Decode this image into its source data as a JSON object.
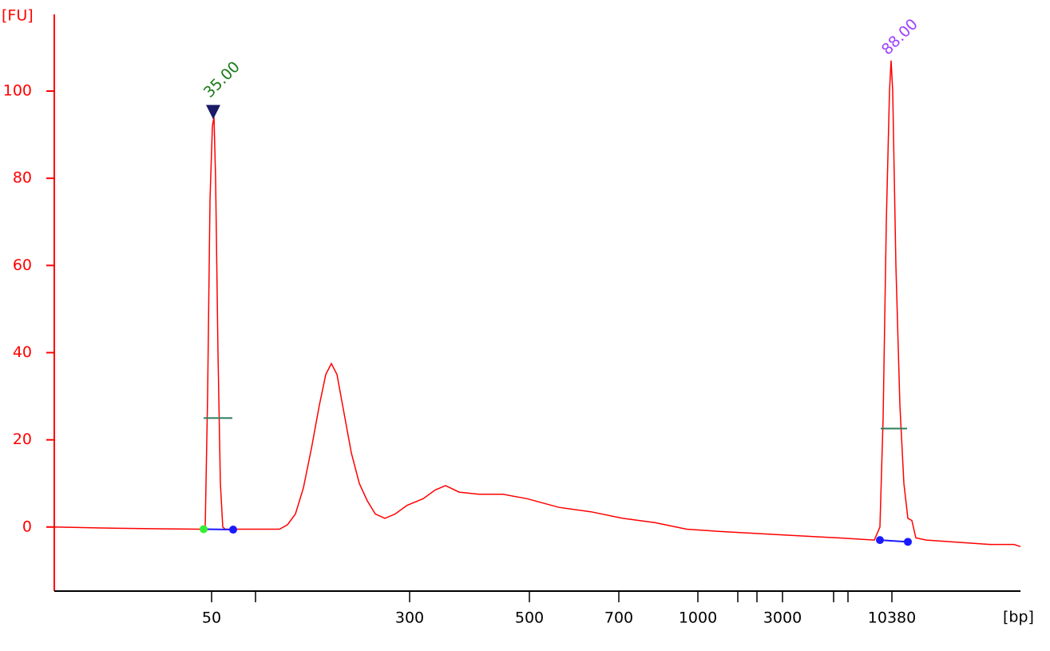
{
  "chart_data": {
    "type": "line",
    "y_label": "[FU]",
    "x_label": "[bp]",
    "color": "#ff0000",
    "axis_color": "#ff0000",
    "xlim": [
      0,
      1210
    ],
    "ylim": [
      -14.7,
      117.6
    ],
    "yticks": [
      0,
      20,
      40,
      60,
      80,
      100
    ],
    "xticks": [
      {
        "value": 197,
        "label": "50"
      },
      {
        "value": 445,
        "label": "300"
      },
      {
        "value": 595,
        "label": "500"
      },
      {
        "value": 707,
        "label": "700"
      },
      {
        "value": 806,
        "label": "1000"
      },
      {
        "value": 912,
        "label": "3000"
      },
      {
        "value": 1049,
        "label": "10380"
      }
    ],
    "minor_xticks": [
      252,
      856,
      880,
      976,
      994
    ],
    "x": [
      0,
      82,
      132,
      182,
      189,
      192,
      195,
      198,
      200,
      202,
      205,
      208,
      211,
      214,
      222,
      282,
      292,
      302,
      312,
      322,
      332,
      340,
      347,
      354,
      362,
      372,
      382,
      392,
      402,
      414,
      427,
      442,
      462,
      477,
      490,
      507,
      532,
      562,
      592,
      632,
      672,
      712,
      752,
      792,
      832,
      882,
      932,
      982,
      1027,
      1034,
      1038,
      1042,
      1046,
      1048,
      1050,
      1054,
      1059,
      1064,
      1069,
      1074,
      1079,
      1092,
      1132,
      1172,
      1202,
      1210
    ],
    "values": [
      0,
      -0.3,
      -0.4,
      -0.5,
      0,
      30,
      75,
      92,
      94,
      80,
      40,
      10,
      0,
      -0.5,
      -0.5,
      -0.5,
      0.5,
      3,
      9,
      18,
      28,
      35,
      37.5,
      35,
      27,
      17,
      10,
      6,
      3,
      2,
      3,
      5,
      6.5,
      8.5,
      9.5,
      8,
      7.5,
      7.5,
      6.5,
      4.5,
      3.5,
      2,
      1,
      -0.5,
      -1,
      -1.5,
      -2,
      -2.5,
      -3,
      0,
      25,
      70,
      100,
      107,
      100,
      60,
      28,
      10,
      2,
      1.5,
      -2.5,
      -3,
      -3.5,
      -4,
      -4,
      -4.5
    ],
    "peaks": [
      {
        "label": "35.00",
        "label_color": "#1a7a1a",
        "apex": [
          199,
          95
        ],
        "apex_marker": true,
        "start": [
          187,
          -0.5
        ],
        "start_color": "#33ee33",
        "end": [
          224,
          -0.6
        ],
        "end_color": "#1a1aff",
        "half": {
          "y": 25,
          "x": [
            187,
            223
          ]
        }
      },
      {
        "label": "88.00",
        "label_color": "#a040ff",
        "apex": [
          1048,
          107
        ],
        "apex_marker": false,
        "start": [
          1034,
          -3
        ],
        "start_color": "#1a1aff",
        "end": [
          1069,
          -3.4
        ],
        "end_color": "#1a1aff",
        "half": {
          "y": 22.6,
          "x": [
            1035,
            1068
          ]
        }
      }
    ]
  }
}
